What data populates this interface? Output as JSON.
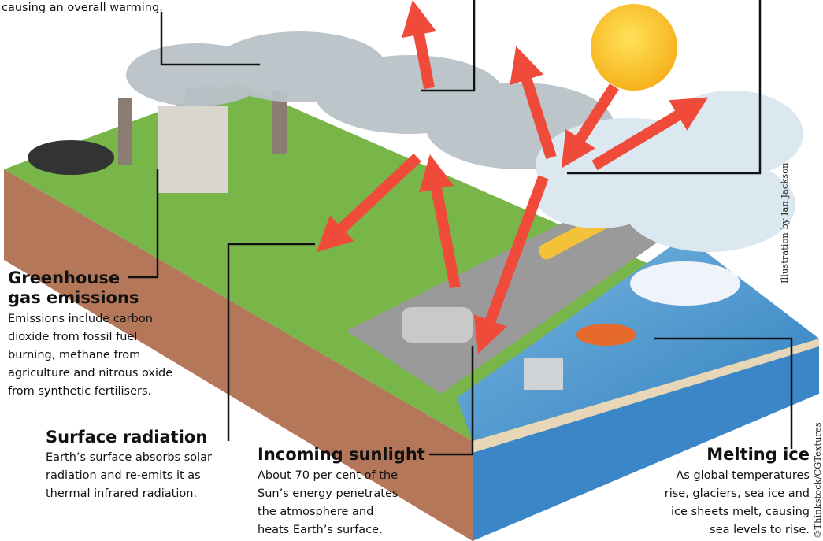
{
  "intro": {
    "lines": [
      "causing an overall warming."
    ]
  },
  "greenhouse": {
    "title": [
      "Greenhouse",
      "gas emissions"
    ],
    "body": [
      "Emissions include carbon",
      "dioxide from fossil fuel",
      "burning, methane from",
      "agriculture and nitrous oxide",
      "from synthetic fertilisers."
    ]
  },
  "surface_radiation": {
    "title": "Surface radiation",
    "body": [
      "Earth’s surface absorbs solar",
      "radiation and re-emits it as",
      "thermal infrared radiation."
    ]
  },
  "incoming_sunlight": {
    "title": "Incoming sunlight",
    "body": [
      "About 70 per cent of the",
      "Sun’s energy penetrates",
      "the atmosphere and",
      "heats Earth’s surface."
    ]
  },
  "melting_ice": {
    "title": "Melting ice",
    "body": [
      "As global temperatures",
      "rise, glaciers, sea ice and",
      "ice sheets melt, causing",
      "sea levels to rise."
    ]
  },
  "credits": {
    "illustration": "Illustration by Ian Jackson",
    "photo": "©Thinkstock/CGTextures"
  }
}
